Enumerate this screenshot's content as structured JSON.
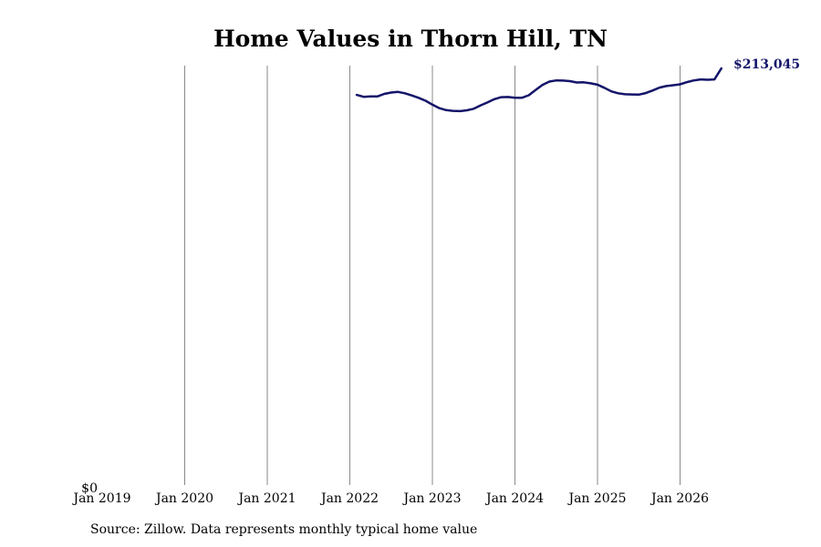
{
  "colors": {
    "line": "#14146a",
    "grid": "#8a8a8a",
    "text": "#000000"
  },
  "source": "Source: Zillow. Data represents monthly typical home value",
  "chart_data": {
    "type": "line",
    "title": "Home Values in Thorn Hill, TN",
    "xlabel": "",
    "ylabel": "",
    "x_ticks": [
      "Jan 2019",
      "Jan 2020",
      "Jan 2021",
      "Jan 2022",
      "Jan 2023",
      "Jan 2024",
      "Jan 2025",
      "Jan 2026"
    ],
    "y_tick_label": "$0",
    "ylim": [
      0,
      213045
    ],
    "grid": "vertical",
    "end_value_label": "$213,045",
    "series": [
      {
        "x": [
          "2022-02",
          "2022-03",
          "2022-04",
          "2022-05",
          "2022-06",
          "2022-07",
          "2022-08",
          "2022-09",
          "2022-10",
          "2022-11",
          "2022-12",
          "2023-01",
          "2023-02",
          "2023-03",
          "2023-04",
          "2023-05",
          "2023-06",
          "2023-07",
          "2023-08",
          "2023-09",
          "2023-10",
          "2023-11",
          "2023-12",
          "2024-01",
          "2024-02",
          "2024-03",
          "2024-04",
          "2024-05",
          "2024-06",
          "2024-07",
          "2024-08",
          "2024-09",
          "2024-10",
          "2024-11",
          "2024-12",
          "2025-01",
          "2025-02",
          "2025-03",
          "2025-04",
          "2025-05",
          "2025-06",
          "2025-07",
          "2025-08",
          "2025-09",
          "2025-10",
          "2025-11",
          "2025-12",
          "2026-01",
          "2026-02",
          "2026-03",
          "2026-04",
          "2026-05",
          "2026-06",
          "2026-07"
        ],
        "values": [
          199500,
          198500,
          198700,
          198700,
          200000,
          200700,
          201000,
          200300,
          199200,
          198000,
          196500,
          194500,
          192700,
          191700,
          191300,
          191200,
          191600,
          192400,
          194100,
          195600,
          197300,
          198300,
          198400,
          198000,
          198000,
          199300,
          202000,
          204600,
          206300,
          206900,
          206800,
          206500,
          205800,
          205900,
          205400,
          204700,
          203100,
          201300,
          200300,
          199800,
          199700,
          199600,
          200400,
          201700,
          203200,
          204000,
          204400,
          204900,
          206000,
          206900,
          207400,
          207200,
          207400,
          213045
        ]
      }
    ]
  }
}
